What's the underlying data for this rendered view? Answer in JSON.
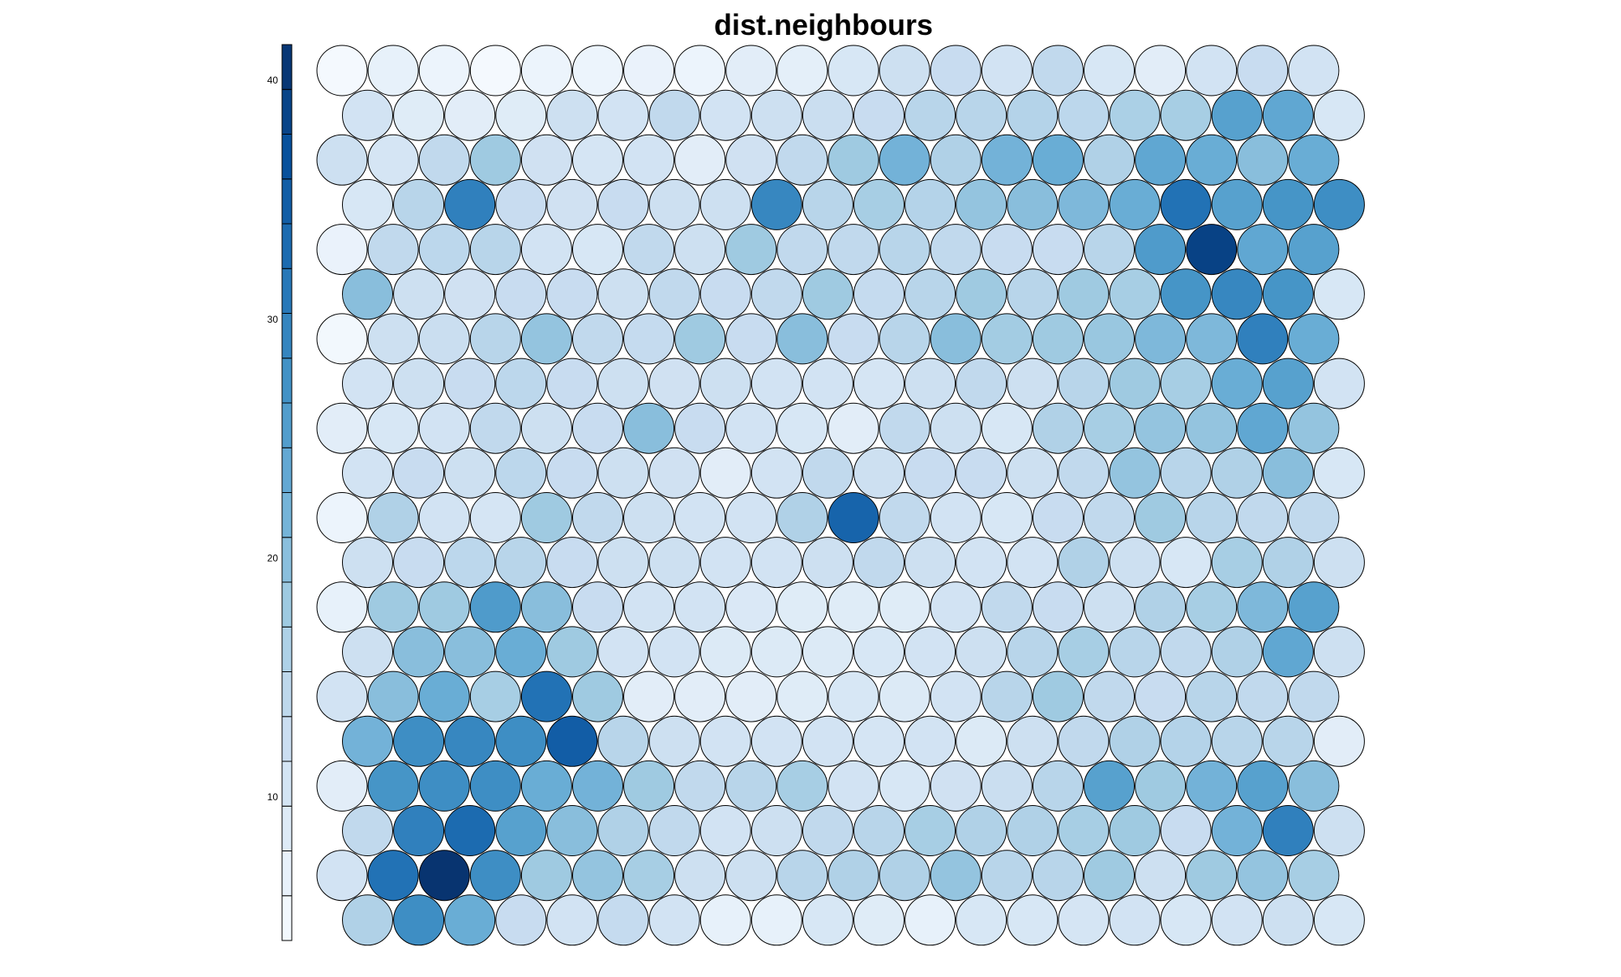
{
  "chart_data": {
    "type": "heatmap",
    "subtype": "som-hexagonal-node-map",
    "title": "dist.neighbours",
    "grid": {
      "rows": 20,
      "cols": 20,
      "topology": "hexagonal"
    },
    "colorbar": {
      "position": "left",
      "min": 4,
      "max": 41.5,
      "ticks": [
        10,
        20,
        30,
        40
      ],
      "tick_labels": [
        "10",
        "20",
        "30",
        "40"
      ],
      "palette": "Blues",
      "color_low": "#f7fbff",
      "color_high": "#08306b",
      "levels": 20
    },
    "row_order": "top-to-bottom",
    "values": [
      [
        4.5,
        7,
        6,
        4.5,
        6,
        6,
        6.5,
        6,
        8,
        7.5,
        10,
        12,
        13,
        11,
        14,
        10,
        8,
        11,
        13,
        11
      ],
      [
        11,
        8.5,
        8,
        8.5,
        12,
        11,
        14,
        11,
        12,
        12.5,
        13,
        15,
        15,
        15.5,
        14.5,
        16.5,
        17,
        25,
        24,
        10
      ],
      [
        12,
        10.5,
        14,
        18,
        11.5,
        10.5,
        11,
        8,
        11.5,
        14,
        18,
        22,
        16,
        22,
        23,
        16,
        24,
        23,
        20,
        23
      ],
      [
        10,
        15,
        30,
        13,
        11.5,
        13,
        12,
        12,
        29,
        15,
        17,
        15.5,
        19,
        20,
        21,
        23,
        32,
        25,
        27,
        28
      ],
      [
        6.5,
        14,
        14.5,
        15,
        11,
        10,
        14,
        12,
        18,
        14,
        14,
        15,
        14,
        13,
        13,
        15,
        26,
        39,
        24,
        25
      ],
      [
        20,
        12,
        11.5,
        13,
        13,
        12,
        14,
        13,
        14,
        18,
        13.5,
        15,
        18,
        15,
        18,
        17,
        27,
        29,
        27,
        10
      ],
      [
        5,
        12,
        12.5,
        15,
        19,
        14,
        13.5,
        18,
        13,
        20,
        13,
        15,
        20,
        17.5,
        18,
        18.5,
        21,
        21,
        30,
        23
      ],
      [
        11,
        12,
        13,
        14.5,
        13,
        12,
        11.5,
        12,
        11,
        11,
        10.5,
        12,
        14,
        12,
        15,
        18,
        17,
        23,
        25,
        11
      ],
      [
        8,
        10,
        11,
        14,
        12,
        13,
        20,
        13,
        11,
        10,
        8,
        14,
        12,
        10,
        16,
        17,
        19,
        19,
        24,
        19
      ],
      [
        11,
        13,
        12,
        14.5,
        13,
        12,
        11.5,
        8,
        11,
        14,
        12,
        13,
        13,
        12,
        14,
        19,
        15,
        16,
        20,
        10
      ],
      [
        6,
        16,
        11,
        10.5,
        18,
        14,
        12,
        11,
        11,
        16,
        34,
        14,
        11,
        10,
        13,
        14,
        18,
        15,
        14,
        14
      ],
      [
        12,
        13,
        14.5,
        15,
        13,
        12,
        12,
        11,
        11,
        12,
        14,
        12,
        11,
        11,
        16,
        12,
        10,
        17,
        16,
        12
      ],
      [
        7,
        18,
        18,
        26,
        20,
        13,
        11,
        11,
        9.5,
        8.5,
        8.5,
        8.5,
        11,
        14,
        13,
        12,
        16,
        17,
        21,
        25
      ],
      [
        12,
        20,
        20,
        23,
        18,
        11,
        11,
        9,
        9,
        9,
        10,
        11,
        12,
        15,
        17,
        15,
        14,
        16,
        24,
        12
      ],
      [
        11,
        20,
        23,
        17,
        32,
        18,
        8,
        8,
        8,
        8.5,
        10,
        9,
        11,
        15,
        18,
        14,
        13,
        15,
        14,
        14
      ],
      [
        22,
        28,
        29,
        28,
        35,
        15,
        12,
        11,
        11,
        11,
        10.5,
        11,
        9,
        12,
        14,
        16,
        15.5,
        15,
        15,
        8
      ],
      [
        8,
        27,
        28,
        28,
        23,
        22,
        18,
        14,
        15,
        17,
        11,
        10,
        11.5,
        12.5,
        15,
        25,
        18,
        22,
        25,
        20
      ],
      [
        14,
        30,
        33,
        25,
        20,
        16,
        14,
        11,
        12,
        14,
        15,
        17,
        16,
        16,
        17,
        18,
        13,
        22,
        30,
        12
      ],
      [
        11,
        32,
        41,
        28,
        18,
        19,
        17,
        12,
        12,
        15,
        16,
        16,
        19,
        15,
        15,
        18,
        12,
        18,
        19,
        17
      ],
      [
        16,
        28,
        23,
        13,
        11,
        13.5,
        11,
        7,
        7,
        10,
        8.5,
        7,
        10,
        10,
        10.5,
        11,
        10,
        11,
        12,
        10
      ]
    ]
  }
}
